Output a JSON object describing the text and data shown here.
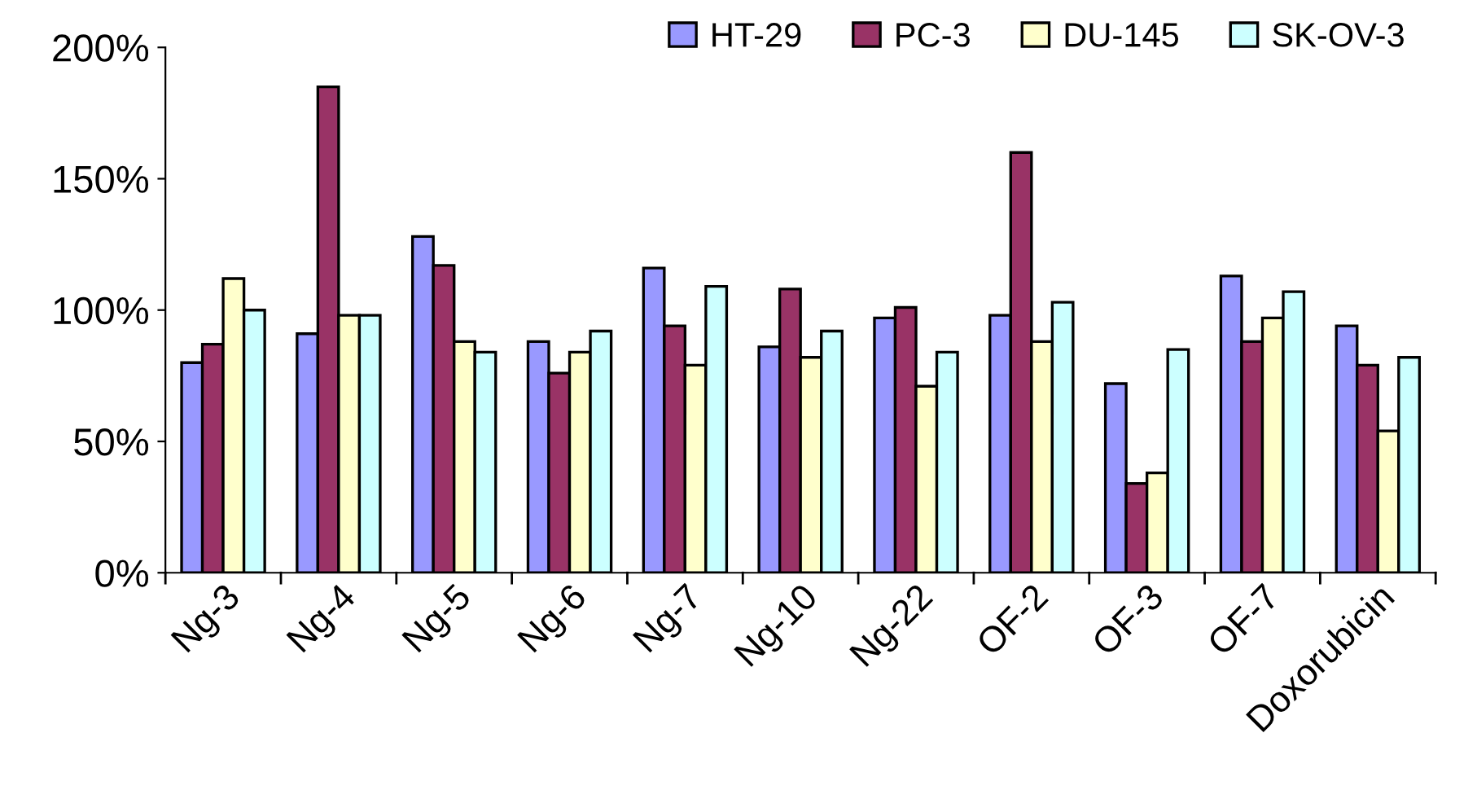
{
  "chart_data": {
    "type": "bar",
    "categories": [
      "Ng-3",
      "Ng-4",
      "Ng-5",
      "Ng-6",
      "Ng-7",
      "Ng-10",
      "Ng-22",
      "OF-2",
      "OF-3",
      "OF-7",
      "Doxorubicin"
    ],
    "series": [
      {
        "name": "HT-29",
        "color": "#9999ff",
        "values": [
          80,
          91,
          128,
          88,
          116,
          86,
          97,
          98,
          72,
          113,
          94
        ]
      },
      {
        "name": "PC-3",
        "color": "#993366",
        "values": [
          87,
          185,
          117,
          76,
          94,
          108,
          101,
          160,
          34,
          88,
          79
        ]
      },
      {
        "name": "DU-145",
        "color": "#ffffcc",
        "values": [
          112,
          98,
          88,
          84,
          79,
          82,
          71,
          88,
          38,
          97,
          54
        ]
      },
      {
        "name": "SK-OV-3",
        "color": "#ccffff",
        "values": [
          100,
          98,
          84,
          92,
          109,
          92,
          84,
          103,
          85,
          107,
          82
        ]
      }
    ],
    "ylim": [
      0,
      200
    ],
    "yticks": [
      {
        "value": 0,
        "label": "0%"
      },
      {
        "value": 50,
        "label": "50%"
      },
      {
        "value": 100,
        "label": "100%"
      },
      {
        "value": 150,
        "label": "150%"
      },
      {
        "value": 200,
        "label": "200%"
      }
    ],
    "grid": false,
    "legend": "top right"
  }
}
